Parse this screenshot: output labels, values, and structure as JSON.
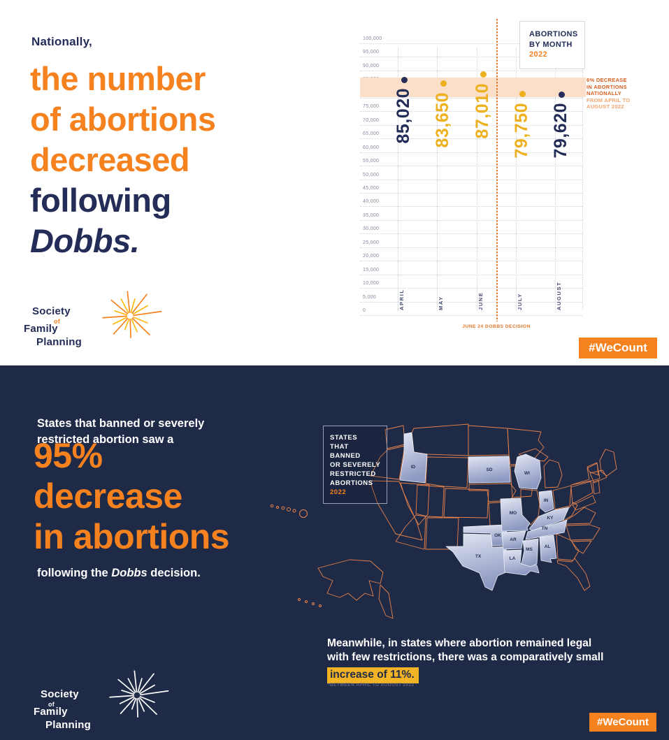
{
  "colors": {
    "orange": "#F5821F",
    "navy": "#242D57",
    "gold": "#EDB11F",
    "panel_navy": "#1F2A47",
    "map_outline": "#E8834A",
    "band": "#FBDFC9",
    "annotation_strong": "#D95E1E",
    "annotation_light": "#F2A46C",
    "highlight_yellow": "#F2B424",
    "grid": "#D2D3DA",
    "tick_gray": "#84889B",
    "month_navy": "#454E74",
    "line_orange": "#E0782F",
    "state_label_navy": "#273052"
  },
  "top_panel": {
    "kicker": "Nationally,",
    "headline": {
      "orange_lines": [
        "the number",
        "of abortions",
        "decreased"
      ],
      "navy_line": "following",
      "italic_line": "Dobbs."
    },
    "wecount": "#WeCount"
  },
  "logo": {
    "society": "Society",
    "of": "of",
    "family": "Family",
    "planning": "Planning"
  },
  "chart_data": [
    {
      "type": "scatter",
      "title_lines": [
        "ABORTIONS",
        "BY MONTH"
      ],
      "year": "2022",
      "categories": [
        "APRIL",
        "MAY",
        "JUNE",
        "JULY",
        "AUGUST"
      ],
      "values": [
        85020,
        83650,
        87010,
        79750,
        79620
      ],
      "labels": [
        "85,020",
        "83,650",
        "87,010",
        "79,750",
        "79,620"
      ],
      "point_colors": [
        "navy",
        "gold",
        "gold",
        "gold",
        "navy"
      ],
      "ylim": [
        0,
        100000
      ],
      "ytick_step": 5000,
      "grid": "dotted",
      "band_value_range": [
        79620,
        85020
      ],
      "event_line": {
        "label": "JUNE 24 DOBBS DECISION",
        "between": [
          "JUNE",
          "JULY"
        ]
      },
      "annotation": {
        "strong_lines": [
          "6% DECREASE",
          "IN ABORTIONS",
          "NATIONALLY"
        ],
        "light_lines": [
          "FROM APRIL TO",
          "AUGUST 2022"
        ]
      }
    },
    {
      "type": "heatmap",
      "title_lines": [
        "STATES",
        "THAT BANNED",
        "OR SEVERELY",
        "RESTRICTED",
        "ABORTIONS"
      ],
      "year": "2022",
      "highlighted_states": [
        "ID",
        "SD",
        "WI",
        "IN",
        "KY",
        "MO",
        "TN",
        "OK",
        "AR",
        "MS",
        "AL",
        "LA",
        "TX"
      ]
    }
  ],
  "bottom_panel": {
    "intro_lines": [
      "States that banned or severely",
      "restricted abortion saw a"
    ],
    "stat_lines": [
      "95%",
      "decrease",
      "in abortions"
    ],
    "outro_prefix": "following the ",
    "outro_italic": "Dobbs",
    "outro_suffix": " decision.",
    "meanwhile_lines": [
      "Meanwhile, in states where abortion remained legal",
      "with few restrictions, there was a comparatively small"
    ],
    "highlight_text": "increase of 11%.",
    "footnote": "*BETWEEN APRIL TO AUGUST 2022",
    "wecount": "#WeCount"
  }
}
